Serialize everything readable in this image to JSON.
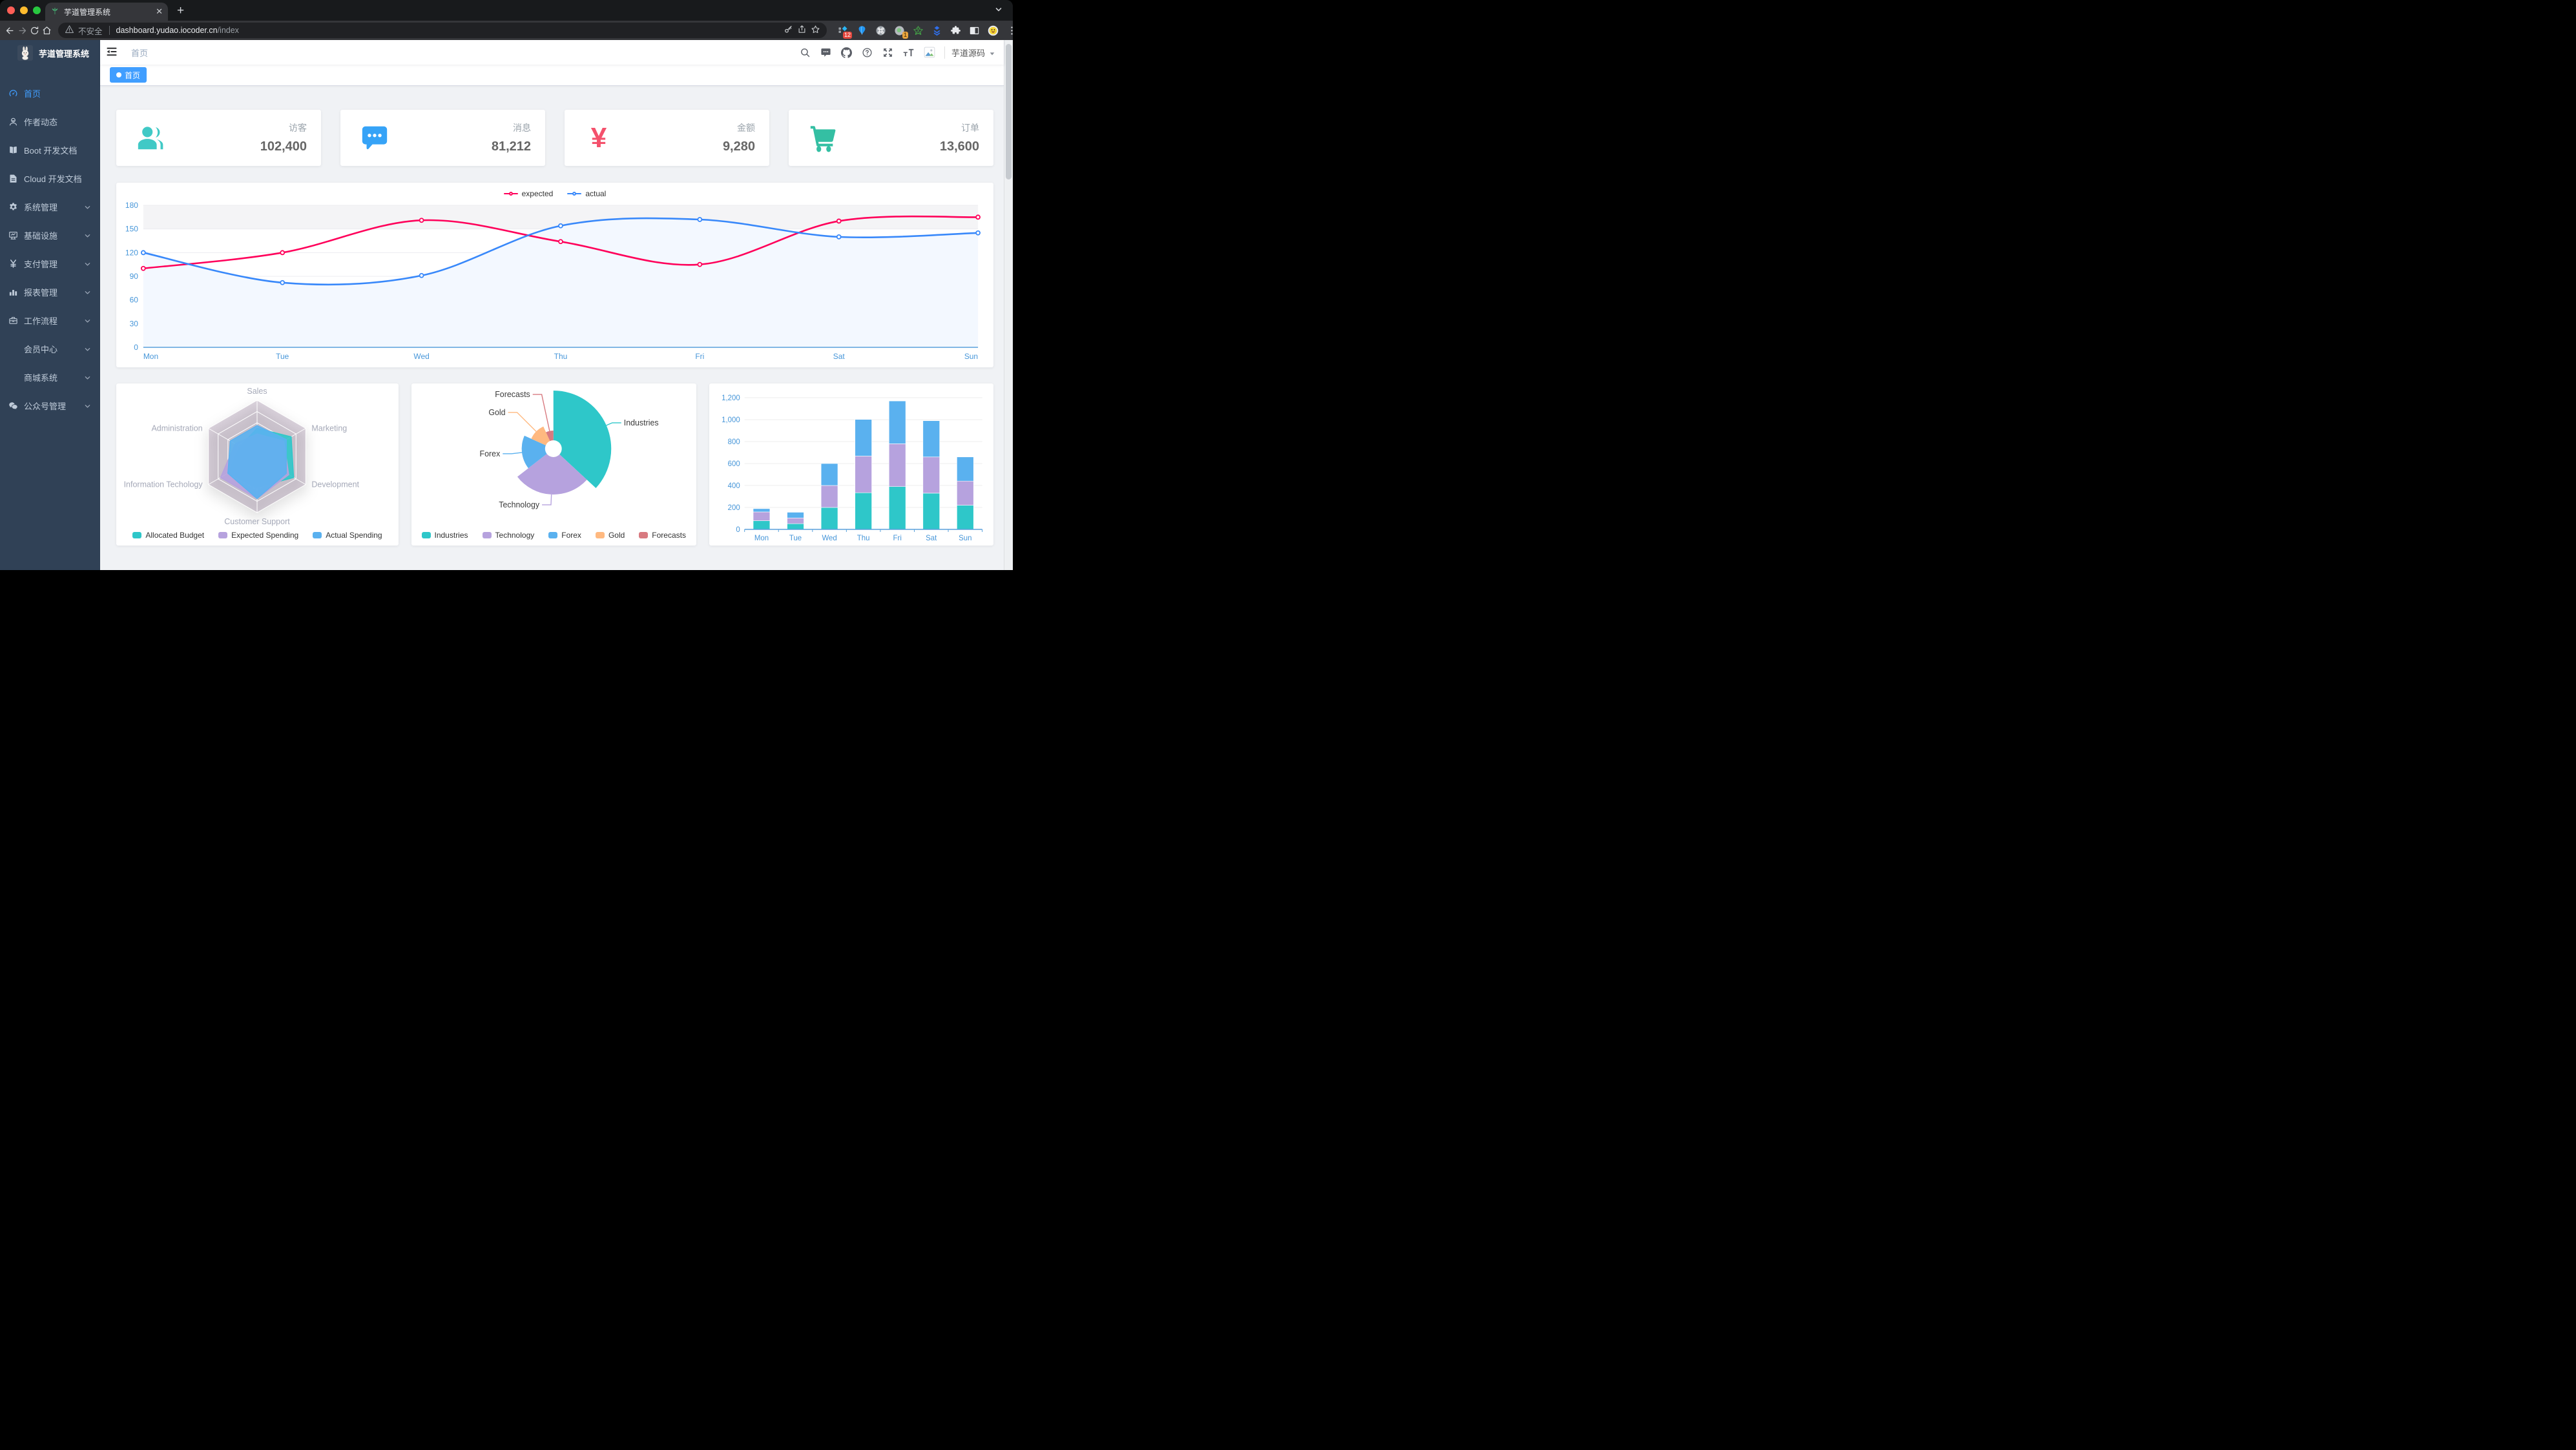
{
  "browser": {
    "tab": {
      "title": "芋道管理系统",
      "close_glyph": "✕",
      "new_tab_glyph": "+"
    },
    "omnibox": {
      "security_label": "不安全",
      "host": "dashboard.yudao.iocoder.cn",
      "path": "/index"
    },
    "extension_badges": {
      "tag_manager": "12",
      "profile": "1"
    }
  },
  "sidebar": {
    "logo_title": "芋道管理系统",
    "items": [
      {
        "label": "首页",
        "icon": "dashboard-icon",
        "active": true,
        "arrow": false
      },
      {
        "label": "作者动态",
        "icon": "author-icon",
        "active": false,
        "arrow": false
      },
      {
        "label": "Boot 开发文档",
        "icon": "book-icon",
        "active": false,
        "arrow": false
      },
      {
        "label": "Cloud 开发文档",
        "icon": "document-icon",
        "active": false,
        "arrow": false
      },
      {
        "label": "系统管理",
        "icon": "gear-icon",
        "active": false,
        "arrow": true
      },
      {
        "label": "基础设施",
        "icon": "monitor-icon",
        "active": false,
        "arrow": true
      },
      {
        "label": "支付管理",
        "icon": "yen-icon",
        "active": false,
        "arrow": true
      },
      {
        "label": "报表管理",
        "icon": "bar-chart-icon",
        "active": false,
        "arrow": true
      },
      {
        "label": "工作流程",
        "icon": "briefcase-icon",
        "active": false,
        "arrow": true
      },
      {
        "label": "会员中心",
        "icon": null,
        "active": false,
        "arrow": true
      },
      {
        "label": "商城系统",
        "icon": null,
        "active": false,
        "arrow": true
      },
      {
        "label": "公众号管理",
        "icon": "wechat-icon",
        "active": false,
        "arrow": true
      }
    ]
  },
  "navbar": {
    "breadcrumb": "首页",
    "user_name": "芋道源码"
  },
  "tags": {
    "items": [
      {
        "label": "首页",
        "active": true
      }
    ]
  },
  "stat_cards": [
    {
      "label": "访客",
      "value": "102,400",
      "icon": "people-icon",
      "color": "#40c9c6"
    },
    {
      "label": "消息",
      "value": "81,212",
      "icon": "message-icon",
      "color": "#36a3f7"
    },
    {
      "label": "金额",
      "value": "9,280",
      "icon": "money-icon",
      "color": "#f4516c",
      "glyph": "¥"
    },
    {
      "label": "订单",
      "value": "13,600",
      "icon": "cart-icon",
      "color": "#34bfa3"
    }
  ],
  "chart_data": [
    {
      "type": "line",
      "x": [
        "Mon",
        "Tue",
        "Wed",
        "Thu",
        "Fri",
        "Sat",
        "Sun"
      ],
      "series": [
        {
          "name": "expected",
          "color": "#FF005A",
          "values": [
            100,
            120,
            161,
            134,
            105,
            160,
            165
          ]
        },
        {
          "name": "actual",
          "color": "#3888FA",
          "values": [
            120,
            82,
            91,
            154,
            162,
            140,
            145
          ],
          "area_color": "#f3f8ff"
        }
      ],
      "ylim": [
        0,
        180
      ],
      "ytick_step": 30,
      "legend_position": "top",
      "grid": true
    },
    {
      "type": "radar",
      "indicators": [
        {
          "name": "Sales",
          "max": 10000
        },
        {
          "name": "Administration",
          "max": 20000
        },
        {
          "name": "Information Techology",
          "max": 20000
        },
        {
          "name": "Customer Support",
          "max": 20000
        },
        {
          "name": "Development",
          "max": 20000
        },
        {
          "name": "Marketing",
          "max": 20000
        }
      ],
      "series": [
        {
          "name": "Allocated Budget",
          "color": "#2EC7C9",
          "values": [
            5000,
            7000,
            12000,
            11000,
            15000,
            14000
          ]
        },
        {
          "name": "Expected Spending",
          "color": "#B6A2DE",
          "values": [
            4000,
            9000,
            15000,
            15000,
            13000,
            11000
          ]
        },
        {
          "name": "Actual Spending",
          "color": "#5AB1EF",
          "values": [
            5500,
            11000,
            12000,
            15000,
            12000,
            12000
          ]
        }
      ],
      "legend_position": "bottom"
    },
    {
      "type": "pie",
      "rose": true,
      "items": [
        {
          "name": "Industries",
          "value": 320,
          "color": "#2EC7C9"
        },
        {
          "name": "Technology",
          "value": 240,
          "color": "#B6A2DE"
        },
        {
          "name": "Forex",
          "value": 149,
          "color": "#5AB1EF"
        },
        {
          "name": "Gold",
          "value": 100,
          "color": "#FFB980"
        },
        {
          "name": "Forecasts",
          "value": 59,
          "color": "#D87A80"
        }
      ],
      "legend_position": "bottom"
    },
    {
      "type": "bar",
      "stacked": true,
      "categories": [
        "Mon",
        "Tue",
        "Wed",
        "Thu",
        "Fri",
        "Sat",
        "Sun"
      ],
      "series": [
        {
          "color": "#2EC7C9",
          "values": [
            79,
            52,
            200,
            334,
            390,
            330,
            220
          ]
        },
        {
          "color": "#B6A2DE",
          "values": [
            80,
            52,
            200,
            334,
            390,
            330,
            220
          ]
        },
        {
          "color": "#5AB1EF",
          "values": [
            30,
            52,
            200,
            334,
            390,
            330,
            220
          ]
        }
      ],
      "ylim": [
        0,
        1200
      ],
      "ytick_labels": [
        "0",
        "200",
        "400",
        "600",
        "800",
        "1,000",
        "1,200"
      ]
    }
  ]
}
